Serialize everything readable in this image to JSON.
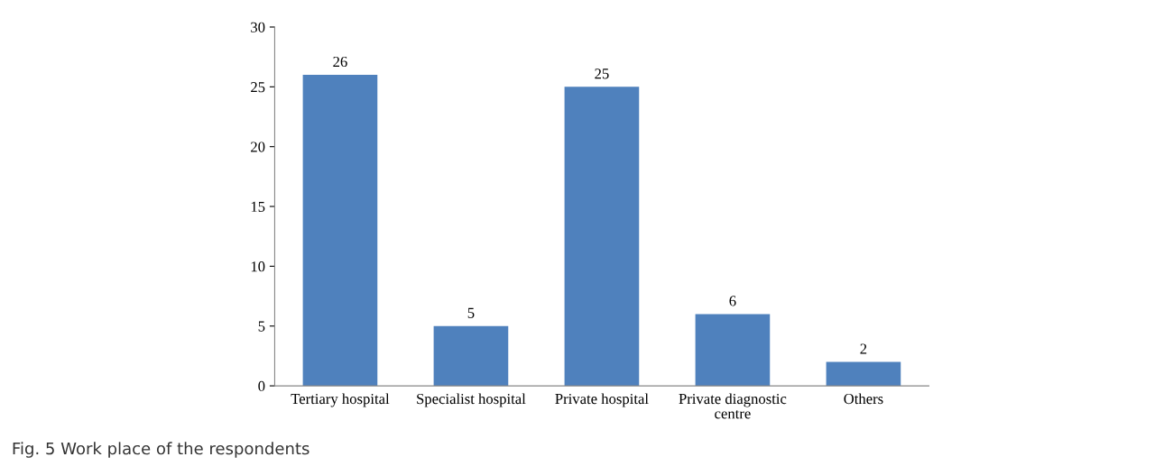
{
  "chart_data": {
    "type": "bar",
    "categories": [
      "Tertiary hospital",
      "Specialist hospital",
      "Private hospital",
      "Private diagnostic centre",
      "Others"
    ],
    "values": [
      26,
      5,
      25,
      6,
      2
    ],
    "color": "#4f81bd",
    "ylim": [
      0,
      30
    ],
    "yticks": [
      0,
      5,
      10,
      15,
      20,
      25,
      30
    ],
    "data_labels": true,
    "grid": false,
    "legend": false,
    "annotations": [
      "Fig. 5 Work place of the respondents"
    ]
  }
}
